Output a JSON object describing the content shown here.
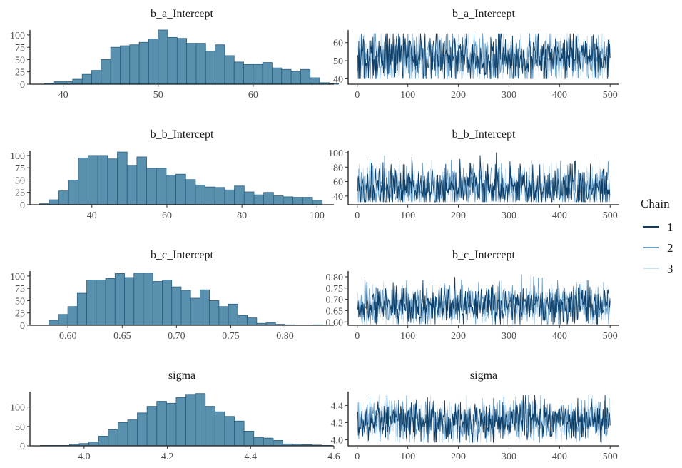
{
  "colors": {
    "hist_fill": "#5990ad",
    "hist_stroke": "#2a5d7d",
    "chain_1": "#0b3e69",
    "chain_2": "#6a9ec4",
    "chain_3": "#c8dfee"
  },
  "legend": {
    "title": "Chain",
    "placement": "right",
    "entries": [
      {
        "label": "1",
        "color_key": "chain_1"
      },
      {
        "label": "2",
        "color_key": "chain_2"
      },
      {
        "label": "3",
        "color_key": "chain_3"
      }
    ]
  },
  "chart_data": [
    {
      "type": "bar",
      "kind": "histogram",
      "title": "b_a_Intercept",
      "bin_start": 38,
      "bin_width": 1,
      "counts": [
        2,
        5,
        5,
        10,
        20,
        28,
        50,
        75,
        78,
        80,
        85,
        92,
        110,
        95,
        93,
        83,
        83,
        67,
        80,
        58,
        45,
        40,
        40,
        44,
        33,
        30,
        26,
        30,
        13,
        3,
        1
      ],
      "xlim": [
        36.5,
        68.5
      ],
      "ylim": [
        0,
        110
      ],
      "xticks": [
        40,
        50,
        60
      ],
      "yticks": [
        0,
        25,
        50,
        75,
        100
      ],
      "xtick_labels": [
        "40",
        "50",
        "60"
      ],
      "ytick_labels": [
        "0",
        "25",
        "50",
        "75",
        "100"
      ]
    },
    {
      "type": "line",
      "kind": "traceplot",
      "title": "b_a_Intercept",
      "iterations": 500,
      "center": 52,
      "spread": 7,
      "range": [
        40,
        65
      ],
      "xlim": [
        -18,
        518
      ],
      "ylim": [
        37,
        67
      ],
      "xticks": [
        0,
        100,
        200,
        300,
        400,
        500
      ],
      "yticks": [
        40,
        50,
        60
      ],
      "xtick_labels": [
        "0",
        "100",
        "200",
        "300",
        "400",
        "500"
      ],
      "ytick_labels": [
        "40",
        "50",
        "60"
      ]
    },
    {
      "type": "bar",
      "kind": "histogram",
      "title": "b_b_Intercept",
      "bin_start": 26,
      "bin_width": 2.6,
      "counts": [
        2,
        10,
        28,
        50,
        95,
        100,
        100,
        93,
        107,
        80,
        97,
        74,
        74,
        60,
        62,
        51,
        40,
        36,
        35,
        30,
        38,
        26,
        20,
        25,
        18,
        16,
        15,
        15,
        9
      ],
      "xlim": [
        23.5,
        104.5
      ],
      "ylim": [
        0,
        110
      ],
      "xticks": [
        40,
        60,
        80,
        100
      ],
      "yticks": [
        0,
        25,
        50,
        75,
        100
      ],
      "xtick_labels": [
        "40",
        "60",
        "80",
        "100"
      ],
      "ytick_labels": [
        "0",
        "25",
        "50",
        "75",
        "100"
      ]
    },
    {
      "type": "line",
      "kind": "traceplot",
      "title": "b_b_Intercept",
      "iterations": 500,
      "center": 52,
      "spread": 16,
      "range": [
        32,
        100
      ],
      "xlim": [
        -18,
        518
      ],
      "ylim": [
        28,
        103
      ],
      "xticks": [
        0,
        100,
        200,
        300,
        400,
        500
      ],
      "yticks": [
        40,
        60,
        80,
        100
      ],
      "xtick_labels": [
        "0",
        "100",
        "200",
        "300",
        "400",
        "500"
      ],
      "ytick_labels": [
        "40",
        "60",
        "80",
        "100"
      ]
    },
    {
      "type": "bar",
      "kind": "histogram",
      "title": "b_c_Intercept",
      "bin_start": 0.5825,
      "bin_width": 0.0087,
      "counts": [
        10,
        22,
        38,
        65,
        92,
        92,
        95,
        105,
        97,
        106,
        106,
        89,
        92,
        78,
        71,
        55,
        72,
        50,
        38,
        43,
        20,
        15,
        4,
        5,
        2,
        1,
        0,
        0,
        1
      ],
      "xlim": [
        0.565,
        0.845
      ],
      "ylim": [
        0,
        110
      ],
      "xticks": [
        0.6,
        0.65,
        0.7,
        0.75,
        0.8
      ],
      "yticks": [
        0,
        25,
        50,
        75,
        100
      ],
      "xtick_labels": [
        "0.60",
        "0.65",
        "0.70",
        "0.75",
        "0.80"
      ],
      "ytick_labels": [
        "0",
        "25",
        "50",
        "75",
        "100"
      ]
    },
    {
      "type": "line",
      "kind": "traceplot",
      "title": "b_c_Intercept",
      "iterations": 500,
      "center": 0.675,
      "spread": 0.045,
      "range": [
        0.59,
        0.82
      ],
      "xlim": [
        -18,
        518
      ],
      "ylim": [
        0.585,
        0.825
      ],
      "xticks": [
        0,
        100,
        200,
        300,
        400,
        500
      ],
      "yticks": [
        0.6,
        0.65,
        0.7,
        0.75,
        0.8
      ],
      "xtick_labels": [
        "0",
        "100",
        "200",
        "300",
        "400",
        "500"
      ],
      "ytick_labels": [
        "0.60",
        "0.65",
        "0.70",
        "0.75",
        "0.80"
      ]
    },
    {
      "type": "bar",
      "kind": "histogram",
      "title": "sigma",
      "bin_start": 3.895,
      "bin_width": 0.0233,
      "counts": [
        1,
        1,
        1,
        4,
        6,
        10,
        25,
        42,
        60,
        67,
        85,
        102,
        115,
        110,
        125,
        133,
        135,
        102,
        88,
        76,
        64,
        38,
        22,
        20,
        14,
        5,
        4,
        3,
        2,
        1
      ],
      "xlim": [
        3.87,
        4.6
      ],
      "ylim": [
        0,
        140
      ],
      "xticks": [
        4.0,
        4.2,
        4.4,
        4.6
      ],
      "yticks": [
        0,
        50,
        100
      ],
      "xtick_labels": [
        "4.0",
        "4.2",
        "4.4",
        "4.6"
      ],
      "ytick_labels": [
        "0",
        "50",
        "100"
      ]
    },
    {
      "type": "line",
      "kind": "traceplot",
      "title": "sigma",
      "iterations": 500,
      "center": 4.22,
      "spread": 0.12,
      "range": [
        3.97,
        4.52
      ],
      "xlim": [
        -18,
        518
      ],
      "ylim": [
        3.93,
        4.56
      ],
      "xticks": [
        0,
        100,
        200,
        300,
        400,
        500
      ],
      "yticks": [
        4.0,
        4.2,
        4.4
      ],
      "xtick_labels": [
        "0",
        "100",
        "200",
        "300",
        "400",
        "500"
      ],
      "ytick_labels": [
        "4.0",
        "4.2",
        "4.4"
      ]
    }
  ]
}
